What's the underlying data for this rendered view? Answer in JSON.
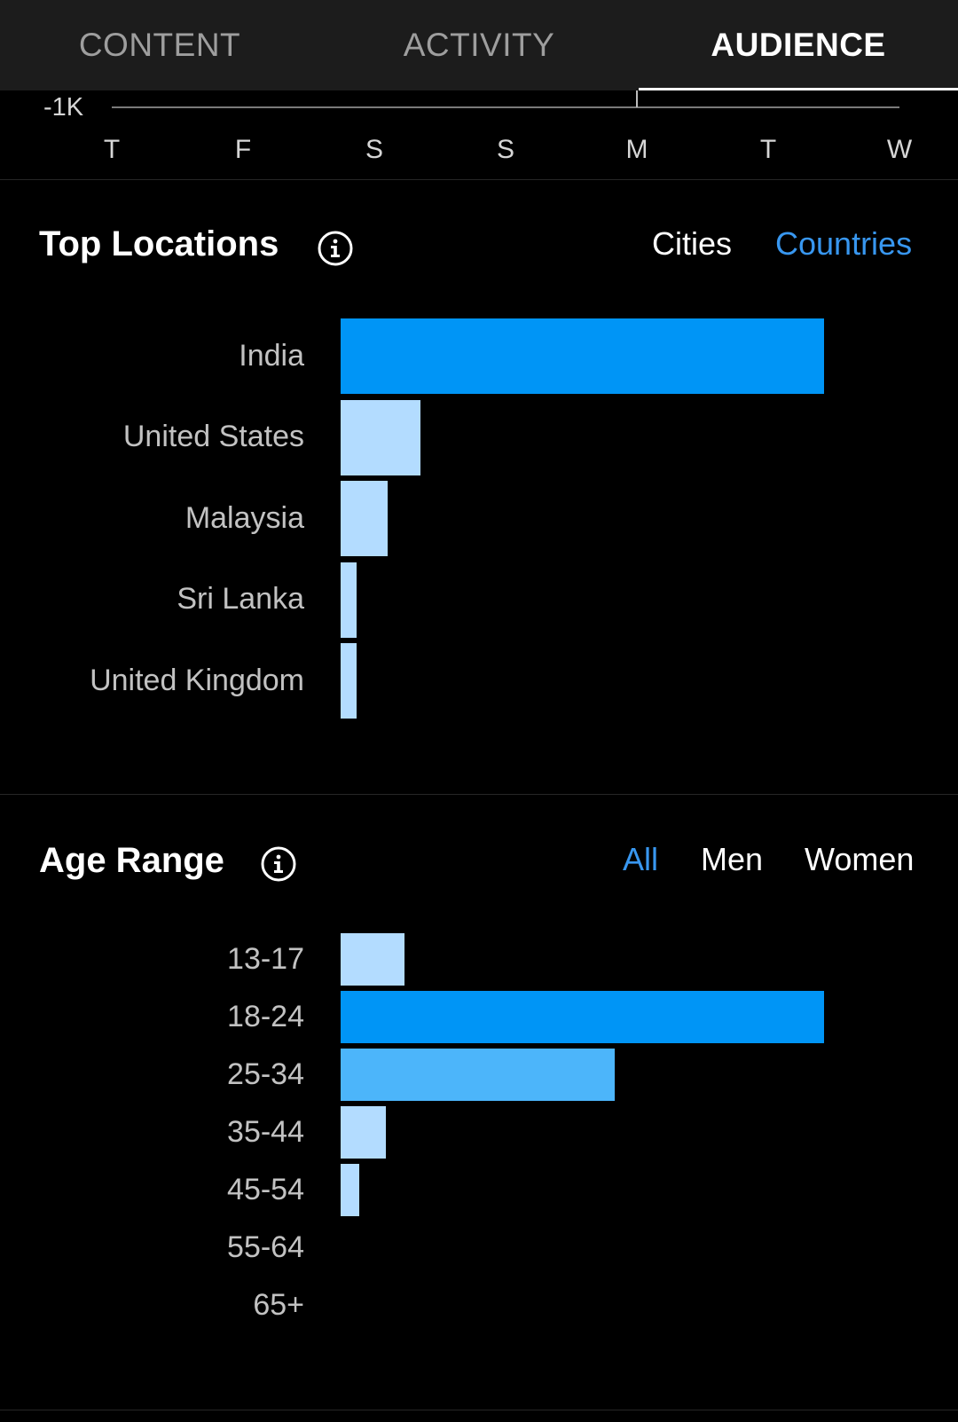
{
  "tabs": [
    {
      "label": "CONTENT",
      "active": false
    },
    {
      "label": "ACTIVITY",
      "active": false
    },
    {
      "label": "AUDIENCE",
      "active": true
    }
  ],
  "previous_chart": {
    "axis_value_label": "-1K",
    "day_labels": [
      "T",
      "F",
      "S",
      "S",
      "M",
      "T",
      "W"
    ]
  },
  "top_locations": {
    "title": "Top Locations",
    "info_icon": "info-circle-icon",
    "filters": [
      {
        "label": "Cities",
        "selected": false
      },
      {
        "label": "Countries",
        "selected": true
      }
    ]
  },
  "age_range": {
    "title": "Age Range",
    "info_icon": "info-circle-icon",
    "filters": [
      {
        "label": "All",
        "selected": true
      },
      {
        "label": "Men",
        "selected": false
      },
      {
        "label": "Women",
        "selected": false
      }
    ]
  },
  "colors": {
    "background": "#000000",
    "tab_bar": "#1c1c1c",
    "accent_blue": "#3897f0",
    "bar_primary": "#0095f6",
    "bar_secondary": "#4cb5fa",
    "bar_light": "#b3dcff"
  },
  "chart_data": [
    {
      "type": "bar",
      "orientation": "horizontal",
      "categories": [
        "India",
        "United States",
        "Malaysia",
        "Sri Lanka",
        "United Kingdom"
      ],
      "values": [
        100,
        16.5,
        9.8,
        3.2,
        3.2
      ],
      "title": "",
      "xlabel": "",
      "ylabel": "",
      "xlim": [
        0,
        100
      ],
      "grid": false
    },
    {
      "type": "bar",
      "orientation": "horizontal",
      "categories": [
        "13-17",
        "18-24",
        "25-34",
        "35-44",
        "45-54",
        "55-64",
        "65+"
      ],
      "values": [
        13.2,
        100,
        56.7,
        9.4,
        3.8,
        0,
        0
      ],
      "title": "",
      "xlabel": "",
      "ylabel": "",
      "xlim": [
        0,
        100
      ],
      "grid": false
    }
  ]
}
